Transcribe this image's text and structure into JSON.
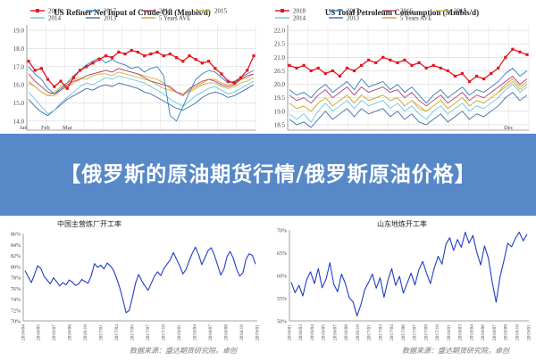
{
  "banner": {
    "title": "【俄罗斯的原油期货行情/俄罗斯原油价格】"
  },
  "colors": {
    "s2018": "#e8141e",
    "s2017": "#2f7fc1",
    "s2016": "#b0406c",
    "s2015": "#c6b43a",
    "s2014": "#6cc6e0",
    "s2013": "#3f6fa8",
    "ave": "#e39a3c",
    "banner": "#4a80c4",
    "cn_line": "#1f3cc7"
  },
  "chart_data": [
    {
      "type": "line",
      "title": "US Refiner Net Input of Crude Oil (Mmbls/d)",
      "legend": {
        "placement": "top",
        "entries": [
          "2018",
          "2017",
          "2016",
          "2015",
          "2014",
          "2013",
          "5 Years AVE"
        ]
      },
      "yticks": [
        "19.0",
        "18.0",
        "17.0",
        "16.0",
        "15.0",
        "14.0"
      ],
      "ylim": [
        13.5,
        19.3
      ],
      "xticks": [
        "Jan",
        "Feb",
        "Mar"
      ],
      "grid": true,
      "series": [
        {
          "name": "2018",
          "marker": "square",
          "values": [
            17.3,
            16.8,
            16.9,
            16.3,
            15.9,
            16.2,
            15.8,
            16.4,
            16.8,
            17.0,
            17.2,
            17.4,
            17.6,
            17.5,
            17.8,
            17.7,
            17.9,
            17.8,
            17.6,
            17.7,
            17.8,
            17.6,
            17.7,
            17.5,
            17.3,
            17.6,
            17.4,
            17.2,
            17.3,
            16.9,
            16.6,
            16.2,
            16.1,
            16.4,
            16.8,
            17.6
          ]
        },
        {
          "name": "2017",
          "values": [
            17.0,
            16.6,
            16.3,
            15.8,
            15.5,
            15.8,
            16.1,
            16.5,
            16.8,
            17.1,
            17.3,
            17.5,
            17.2,
            17.4,
            17.2,
            17.1,
            16.9,
            17.0,
            16.7,
            16.9,
            17.0,
            16.5,
            14.3,
            14.0,
            14.8,
            15.6,
            16.3,
            16.6,
            16.8,
            16.7,
            16.4,
            16.1,
            16.2,
            16.4,
            16.6,
            16.8
          ]
        },
        {
          "name": "2016",
          "values": [
            16.6,
            16.2,
            15.9,
            15.6,
            15.5,
            15.7,
            16.0,
            16.2,
            16.3,
            16.5,
            16.6,
            16.7,
            16.8,
            16.7,
            16.9,
            16.8,
            16.7,
            16.6,
            16.4,
            16.2,
            16.1,
            16.0,
            15.9,
            15.6,
            15.4,
            15.8,
            16.0,
            16.2,
            16.3,
            16.2,
            16.0,
            15.9,
            16.0,
            16.3,
            16.5,
            16.6
          ]
        },
        {
          "name": "2015",
          "values": [
            16.1,
            15.9,
            15.6,
            15.4,
            15.6,
            15.9,
            16.1,
            16.3,
            16.4,
            16.3,
            16.5,
            16.6,
            16.6,
            16.5,
            16.7,
            16.6,
            16.5,
            16.4,
            16.3,
            16.2,
            16.0,
            15.8,
            15.7,
            15.6,
            15.5,
            15.6,
            15.8,
            16.0,
            16.1,
            16.1,
            15.9,
            15.8,
            15.9,
            16.1,
            16.2,
            16.4
          ]
        },
        {
          "name": "2014",
          "values": [
            15.6,
            15.2,
            14.8,
            14.4,
            14.6,
            15.0,
            15.3,
            15.6,
            15.9,
            16.1,
            16.0,
            16.2,
            16.4,
            16.3,
            16.5,
            16.4,
            16.3,
            16.2,
            16.1,
            15.9,
            15.7,
            15.5,
            15.2,
            15.0,
            14.8,
            15.1,
            15.4,
            15.6,
            15.8,
            15.9,
            15.7,
            15.5,
            15.6,
            15.8,
            16.0,
            16.2
          ]
        },
        {
          "name": "2013",
          "values": [
            15.2,
            14.8,
            14.5,
            14.3,
            14.6,
            14.9,
            15.2,
            15.4,
            15.6,
            15.8,
            15.7,
            15.9,
            16.0,
            15.9,
            16.1,
            16.0,
            15.9,
            15.8,
            15.6,
            15.5,
            15.3,
            15.1,
            14.9,
            14.7,
            14.6,
            14.8,
            15.0,
            15.3,
            15.5,
            15.6,
            15.5,
            15.3,
            15.4,
            15.6,
            15.8,
            16.0
          ]
        },
        {
          "name": "5 Years AVE",
          "values": [
            16.2,
            15.9,
            15.6,
            15.4,
            15.4,
            15.7,
            15.9,
            16.1,
            16.3,
            16.5,
            16.6,
            16.7,
            16.8,
            16.7,
            16.9,
            16.8,
            16.7,
            16.6,
            16.5,
            16.4,
            16.3,
            16.1,
            15.8,
            15.6,
            15.5,
            15.7,
            15.9,
            16.1,
            16.3,
            16.3,
            16.1,
            16.0,
            16.1,
            16.3,
            16.4,
            16.6
          ]
        }
      ]
    },
    {
      "type": "line",
      "title": "US Total Petroleum Consumption (Mmbls/d)",
      "legend": {
        "placement": "top",
        "entries": [
          "2018",
          "2017",
          "2016",
          "2015",
          "2014",
          "2013",
          "5 Years AVE"
        ]
      },
      "yticks": [
        "22.0",
        "21.5",
        "21.0",
        "20.5",
        "20.0",
        "19.5",
        "19.0",
        "18.5"
      ],
      "ylim": [
        18.3,
        22.2
      ],
      "xticks": [
        "Dec"
      ],
      "grid": true,
      "series": [
        {
          "name": "2018",
          "marker": "square",
          "values": [
            20.7,
            20.6,
            20.7,
            20.5,
            20.6,
            20.4,
            20.5,
            20.3,
            20.6,
            20.5,
            20.7,
            20.9,
            20.8,
            21.0,
            20.9,
            20.8,
            20.9,
            20.7,
            20.8,
            20.6,
            20.7,
            20.6,
            20.5,
            20.3,
            20.4,
            20.1,
            20.3,
            20.2,
            20.4,
            20.6,
            21.0,
            21.3,
            21.2,
            21.1
          ]
        },
        {
          "name": "2017",
          "values": [
            19.8,
            19.6,
            19.7,
            19.5,
            19.8,
            20.0,
            19.7,
            19.9,
            20.1,
            19.8,
            20.2,
            19.9,
            20.0,
            20.1,
            19.8,
            20.0,
            19.7,
            19.9,
            19.6,
            19.3,
            19.6,
            19.8,
            19.5,
            19.7,
            19.9,
            19.6,
            19.8,
            19.7,
            19.9,
            20.1,
            20.4,
            20.6,
            20.3,
            20.5
          ]
        },
        {
          "name": "2016",
          "values": [
            19.6,
            19.4,
            19.5,
            19.3,
            19.6,
            19.8,
            19.5,
            19.7,
            19.9,
            19.6,
            19.9,
            19.7,
            19.8,
            19.9,
            19.7,
            19.8,
            19.5,
            19.7,
            19.4,
            19.2,
            19.4,
            19.6,
            19.3,
            19.5,
            19.7,
            19.4,
            19.6,
            19.5,
            19.7,
            19.9,
            20.1,
            20.3,
            20.0,
            20.2
          ]
        },
        {
          "name": "2015",
          "values": [
            19.3,
            19.1,
            19.2,
            19.0,
            19.3,
            19.5,
            19.2,
            19.4,
            19.6,
            19.3,
            19.6,
            19.4,
            19.5,
            19.6,
            19.4,
            19.5,
            19.2,
            19.4,
            19.1,
            19.0,
            19.2,
            19.4,
            19.1,
            19.3,
            19.5,
            19.2,
            19.4,
            19.3,
            19.5,
            19.7,
            19.9,
            20.1,
            19.8,
            20.0
          ]
        },
        {
          "name": "2014",
          "values": [
            18.9,
            18.7,
            18.9,
            18.6,
            19.0,
            19.3,
            19.0,
            19.2,
            19.4,
            19.1,
            19.4,
            19.2,
            19.3,
            19.4,
            19.1,
            19.3,
            19.0,
            19.2,
            18.9,
            18.7,
            19.0,
            19.2,
            18.9,
            19.1,
            19.3,
            19.0,
            19.2,
            19.1,
            19.3,
            19.5,
            19.8,
            20.0,
            19.7,
            19.9
          ]
        },
        {
          "name": "2013",
          "values": [
            18.7,
            18.5,
            18.6,
            18.4,
            18.7,
            19.0,
            18.7,
            18.9,
            19.1,
            18.8,
            19.1,
            18.9,
            19.0,
            19.1,
            18.8,
            19.0,
            18.7,
            18.9,
            18.6,
            18.5,
            18.7,
            18.9,
            18.6,
            18.8,
            19.0,
            18.7,
            18.9,
            18.8,
            19.0,
            19.2,
            19.5,
            19.7,
            19.4,
            19.6
          ]
        },
        {
          "name": "5 Years AVE",
          "values": [
            19.3,
            19.1,
            19.2,
            19.0,
            19.3,
            19.5,
            19.2,
            19.4,
            19.6,
            19.3,
            19.6,
            19.4,
            19.5,
            19.6,
            19.4,
            19.5,
            19.2,
            19.4,
            19.2,
            19.0,
            19.2,
            19.4,
            19.1,
            19.3,
            19.5,
            19.2,
            19.4,
            19.3,
            19.5,
            19.7,
            20.0,
            20.2,
            19.9,
            20.1
          ]
        }
      ]
    },
    {
      "type": "line",
      "title": "中国主营炼厂开工率",
      "yticks": [
        "86%",
        "84%",
        "82%",
        "80%",
        "78%",
        "76%",
        "74%",
        "72%",
        "70%"
      ],
      "ylim": [
        70,
        86
      ],
      "xticks": [
        "2016/04",
        "2016/05",
        "2016/07",
        "2016/08",
        "2016/10",
        "2017/01",
        "2017/04",
        "2017/05",
        "2017/07",
        "2017/10",
        "2018/01",
        "2018/04",
        "2018/07",
        "2018/08",
        "2018/10",
        "2019/01"
      ],
      "grid": false,
      "source": "数据来源：盛达期货研究院，卓创",
      "series": [
        {
          "name": "",
          "values": [
            79.2,
            78.1,
            77.0,
            78.5,
            80.1,
            79.6,
            78.2,
            77.5,
            76.8,
            77.9,
            77.2,
            76.4,
            77.0,
            76.6,
            77.5,
            77.1,
            76.5,
            76.8,
            77.6,
            77.2,
            76.9,
            78.3,
            80.5,
            79.8,
            80.2,
            79.5,
            80.6,
            80.1,
            79.3,
            77.8,
            76.1,
            73.9,
            71.5,
            71.9,
            74.3,
            76.9,
            78.5,
            77.3,
            76.4,
            75.6,
            76.9,
            78.2,
            79.0,
            78.3,
            79.6,
            80.4,
            81.2,
            82.5,
            81.3,
            80.1,
            78.6,
            79.4,
            81.0,
            82.4,
            83.5,
            82.1,
            80.3,
            81.6,
            82.9,
            83.4,
            82.0,
            80.2,
            78.4,
            79.5,
            81.8,
            82.7,
            81.4,
            79.5,
            78.2,
            78.8,
            81.3,
            82.3,
            82.0,
            80.4
          ]
        }
      ]
    },
    {
      "type": "line",
      "title": "山东地炼开工率",
      "yticks": [
        "70%",
        "65%",
        "60%",
        "55%",
        "50%"
      ],
      "ylim": [
        50,
        70
      ],
      "xticks": [
        "2016/01",
        "2016/03",
        "2016/04",
        "2016/05",
        "2016/07",
        "2016/08",
        "2016/10",
        "2017/01",
        "2017/03",
        "2017/04",
        "2017/06",
        "2017/07",
        "2017/09",
        "2017/10",
        "2018/01",
        "2018/03",
        "2018/04",
        "2018/06",
        "2018/07",
        "2018/09",
        "2018/10",
        "2019/01"
      ],
      "grid": false,
      "source": "数据来源：盛达期货研究院，卓创",
      "series": [
        {
          "name": "",
          "values": [
            58.5,
            56.2,
            57.8,
            55.5,
            59.1,
            60.8,
            58.2,
            61.5,
            57.3,
            59.2,
            62.8,
            58.1,
            56.4,
            60.3,
            58.2,
            55.1,
            54.2,
            51.1,
            53.5,
            56.8,
            58.5,
            60.3,
            57.2,
            59.5,
            55.2,
            58.9,
            61.5,
            57.8,
            59.8,
            56.1,
            58.3,
            60.5,
            57.9,
            61.2,
            63.1,
            60.5,
            58.2,
            61.6,
            64.2,
            62.5,
            66.8,
            68.3,
            65.5,
            67.9,
            66.2,
            69.5,
            67.1,
            68.8,
            65.1,
            62.3,
            66.5,
            63.8,
            58.5,
            54.1,
            59.6,
            63.2,
            67.1,
            66.3,
            68.2,
            69.5,
            67.6,
            69.1
          ]
        }
      ]
    }
  ]
}
